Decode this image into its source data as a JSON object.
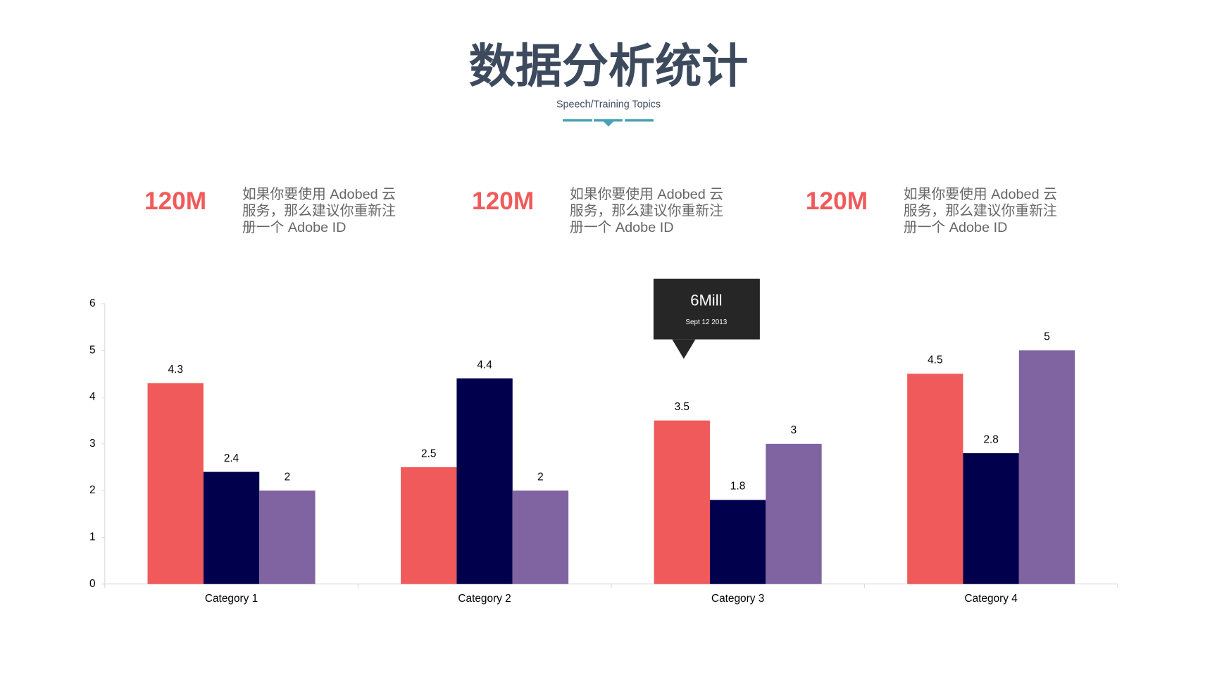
{
  "header": {
    "title": "数据分析统计",
    "subtitle": "Speech/Training Topics"
  },
  "stats": [
    {
      "value": "120M",
      "lines": [
        "如果你要使用 Adobed 云",
        "服务，那么建议你重新注",
        "册一个 Adobe ID"
      ]
    },
    {
      "value": "120M",
      "lines": [
        "如果你要使用 Adobed 云",
        "服务，那么建议你重新注",
        "册一个 Adobe ID"
      ]
    },
    {
      "value": "120M",
      "lines": [
        "如果你要使用 Adobed 云",
        "服务，那么建议你重新注",
        "册一个 Adobe ID"
      ]
    }
  ],
  "chart_data": {
    "type": "bar",
    "categories": [
      "Category 1",
      "Category 2",
      "Category 3",
      "Category 4"
    ],
    "series": [
      {
        "color": "#f05a5b",
        "values": [
          4.3,
          2.5,
          3.5,
          4.5
        ]
      },
      {
        "color": "#01004d",
        "values": [
          2.4,
          4.4,
          1.8,
          2.8
        ]
      },
      {
        "color": "#7f64a1",
        "values": [
          2,
          2,
          3,
          5
        ]
      }
    ],
    "ylim": [
      0,
      6
    ],
    "yticks": [
      0,
      1,
      2,
      3,
      4,
      5,
      6
    ],
    "grid": false,
    "annotation": {
      "title": "6Mill",
      "subtitle": "Sept 12 2013"
    }
  }
}
